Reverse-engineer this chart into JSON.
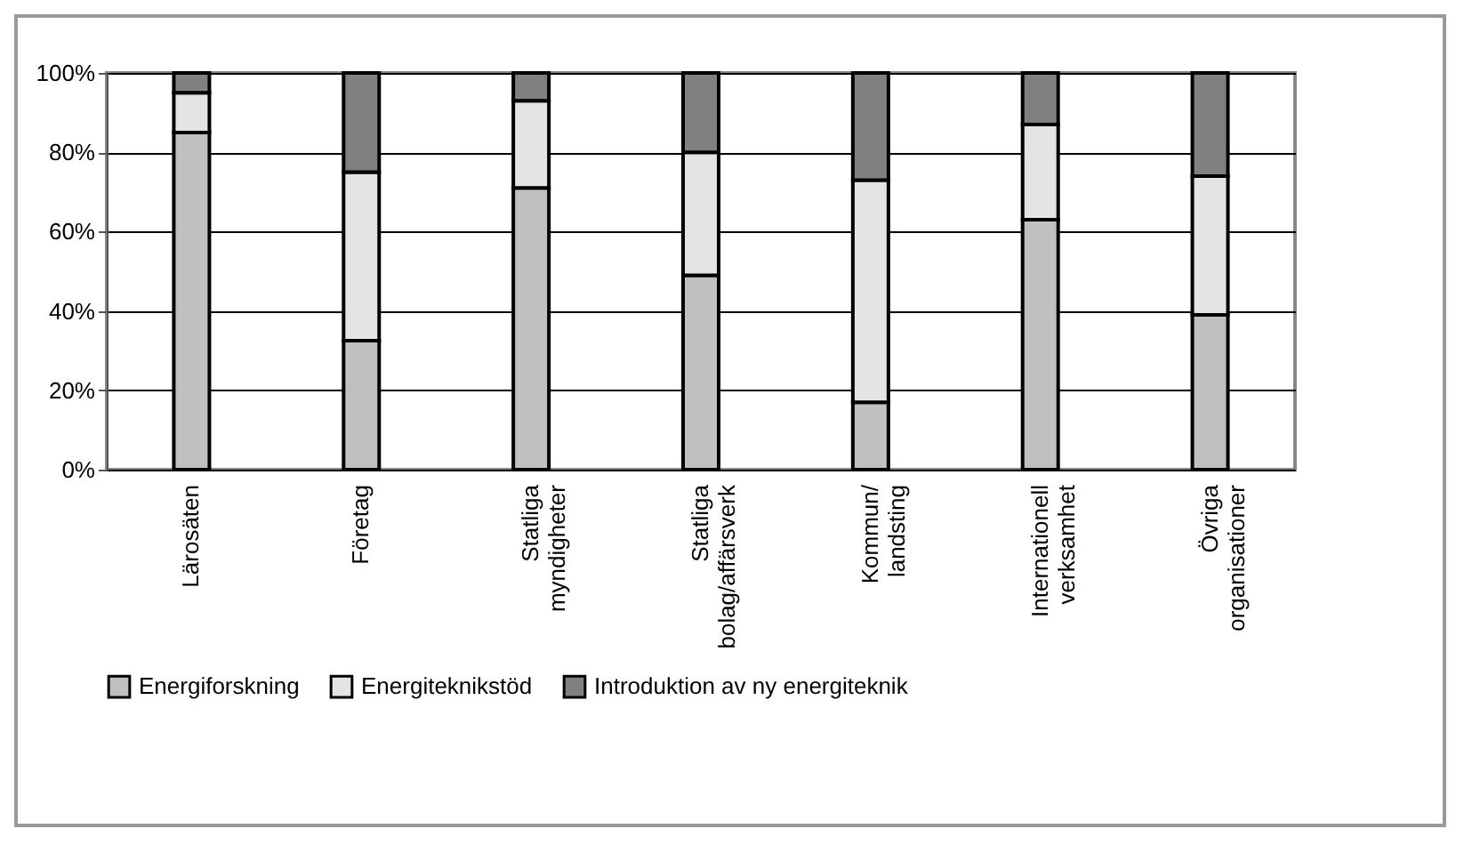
{
  "chart_data": {
    "type": "bar",
    "stacked": true,
    "categories": [
      "Lärosäten",
      "Företag",
      "Statliga myndigheter",
      "Statliga bolag/affärsverk",
      "Kommun/ landsting",
      "Internationell verksamhet",
      "Övriga organisationer"
    ],
    "series": [
      {
        "name": "Energiforskning",
        "color": "#c0c0c0",
        "values": [
          85,
          32.5,
          71,
          49,
          17,
          63,
          39
        ]
      },
      {
        "name": "Energiteknikstöd",
        "color": "#e4e4e4",
        "values": [
          10,
          42.5,
          22,
          31,
          56,
          24,
          35
        ]
      },
      {
        "name": "Introduktion av ny energiteknik",
        "color": "#808080",
        "values": [
          5,
          25,
          7,
          20,
          27,
          13,
          26
        ]
      }
    ],
    "ylim": [
      0,
      100
    ],
    "yticks": [
      {
        "value": 0,
        "label": "0%"
      },
      {
        "value": 20,
        "label": "20%"
      },
      {
        "value": 40,
        "label": "40%"
      },
      {
        "value": 60,
        "label": "60%"
      },
      {
        "value": 80,
        "label": "80%"
      },
      {
        "value": 100,
        "label": "100%"
      }
    ],
    "grid": "y",
    "legend": "bottom"
  }
}
